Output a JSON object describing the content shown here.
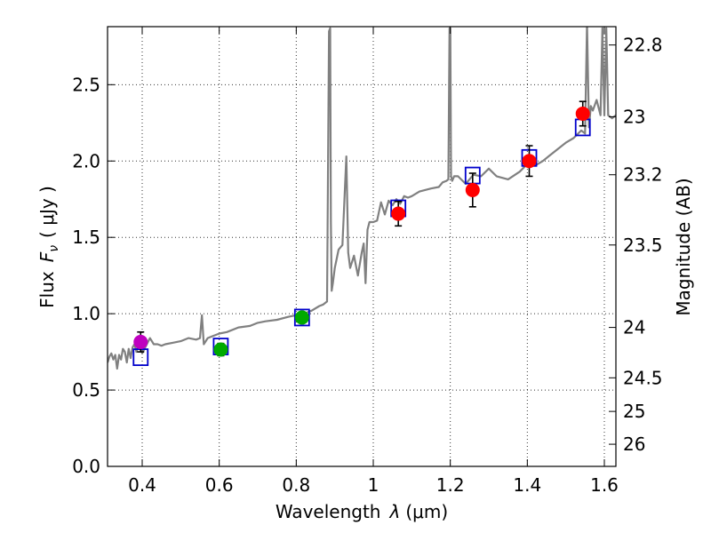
{
  "chart_data": {
    "type": "line",
    "title": "",
    "xlabel_prefix": "Wavelength",
    "xlabel_var": "λ",
    "xlabel_unit": "(μm)",
    "ylabel_prefix": "Flux",
    "ylabel_var": "F",
    "ylabel_sub": "ν",
    "ylabel_unit": "( μJy )",
    "y2label": "Magnitude (AB)",
    "xlim": [
      0.31,
      1.63
    ],
    "ylim": [
      0.0,
      2.88
    ],
    "grid": true,
    "x_ticks": [
      0.4,
      0.6,
      0.8,
      1.0,
      1.2,
      1.4,
      1.6
    ],
    "x_tick_labels": [
      "0.4",
      "0.6",
      "0.8",
      "1",
      "1.2",
      "1.4",
      "1.6"
    ],
    "y_ticks": [
      0.0,
      0.5,
      1.0,
      1.5,
      2.0,
      2.5
    ],
    "y_tick_labels": [
      "0.0",
      "0.5",
      "1.0",
      "1.5",
      "2.0",
      "2.5"
    ],
    "y2_ticks": [
      {
        "label": "22.8",
        "flux": 2.76
      },
      {
        "label": "23",
        "flux": 2.29
      },
      {
        "label": "23.2",
        "flux": 1.91
      },
      {
        "label": "23.5",
        "flux": 1.45
      },
      {
        "label": "24",
        "flux": 0.91
      },
      {
        "label": "24.5",
        "flux": 0.58
      },
      {
        "label": "25",
        "flux": 0.36
      },
      {
        "label": "26",
        "flux": 0.145
      }
    ],
    "series": [
      {
        "name": "model-spectrum",
        "color": "#808080",
        "x": [
          0.31,
          0.315,
          0.32,
          0.325,
          0.33,
          0.335,
          0.34,
          0.345,
          0.35,
          0.355,
          0.36,
          0.365,
          0.37,
          0.375,
          0.38,
          0.385,
          0.39,
          0.395,
          0.4,
          0.41,
          0.42,
          0.43,
          0.44,
          0.45,
          0.46,
          0.48,
          0.5,
          0.52,
          0.54,
          0.55,
          0.555,
          0.56,
          0.57,
          0.58,
          0.6,
          0.62,
          0.65,
          0.68,
          0.7,
          0.72,
          0.75,
          0.78,
          0.8,
          0.82,
          0.84,
          0.86,
          0.87,
          0.88,
          0.885,
          0.888,
          0.89,
          0.892,
          0.895,
          0.9,
          0.91,
          0.92,
          0.93,
          0.935,
          0.94,
          0.95,
          0.96,
          0.97,
          0.975,
          0.98,
          0.985,
          0.99,
          1.0,
          1.01,
          1.02,
          1.03,
          1.04,
          1.05,
          1.06,
          1.07,
          1.08,
          1.09,
          1.1,
          1.12,
          1.15,
          1.17,
          1.18,
          1.19,
          1.195,
          1.198,
          1.2,
          1.202,
          1.205,
          1.21,
          1.22,
          1.24,
          1.26,
          1.28,
          1.3,
          1.32,
          1.35,
          1.38,
          1.4,
          1.42,
          1.44,
          1.46,
          1.48,
          1.5,
          1.52,
          1.54,
          1.55,
          1.555,
          1.56,
          1.565,
          1.57,
          1.58,
          1.59,
          1.595,
          1.6,
          1.605,
          1.61,
          1.62,
          1.63
        ],
        "y": [
          0.68,
          0.72,
          0.74,
          0.7,
          0.73,
          0.64,
          0.73,
          0.7,
          0.77,
          0.75,
          0.68,
          0.77,
          0.71,
          0.78,
          0.8,
          0.75,
          0.79,
          0.78,
          0.74,
          0.79,
          0.84,
          0.8,
          0.8,
          0.79,
          0.8,
          0.81,
          0.82,
          0.84,
          0.83,
          0.84,
          0.99,
          0.8,
          0.84,
          0.85,
          0.87,
          0.88,
          0.91,
          0.92,
          0.94,
          0.95,
          0.96,
          0.98,
          0.99,
          1.0,
          1.02,
          1.05,
          1.06,
          1.08,
          2.85,
          2.87,
          1.6,
          1.15,
          1.2,
          1.3,
          1.42,
          1.45,
          2.03,
          1.4,
          1.3,
          1.38,
          1.25,
          1.4,
          1.46,
          1.2,
          1.55,
          1.6,
          1.6,
          1.61,
          1.73,
          1.65,
          1.74,
          1.71,
          1.75,
          1.72,
          1.77,
          1.76,
          1.77,
          1.8,
          1.82,
          1.83,
          1.86,
          1.87,
          1.88,
          2.87,
          2.87,
          1.9,
          1.87,
          1.9,
          1.9,
          1.85,
          1.91,
          1.9,
          1.95,
          1.9,
          1.88,
          1.93,
          1.98,
          1.97,
          2.0,
          2.04,
          2.08,
          2.12,
          2.15,
          2.2,
          2.18,
          2.9,
          2.22,
          2.36,
          2.33,
          2.4,
          2.3,
          2.87,
          2.3,
          2.87,
          2.3,
          2.28,
          2.3
        ]
      }
    ],
    "observed_points": [
      {
        "x": 0.396,
        "y": 0.815,
        "err": 0.065,
        "color": "#bf00bf"
      },
      {
        "x": 0.604,
        "y": 0.765,
        "err": 0.04,
        "color": "#00aa00"
      },
      {
        "x": 0.815,
        "y": 0.975,
        "err": 0.03,
        "color": "#00aa00"
      },
      {
        "x": 1.065,
        "y": 1.655,
        "err": 0.08,
        "color": "#ff0000"
      },
      {
        "x": 1.258,
        "y": 1.81,
        "err": 0.11,
        "color": "#ff0000"
      },
      {
        "x": 1.405,
        "y": 2.0,
        "err": 0.1,
        "color": "#ff0000"
      },
      {
        "x": 1.544,
        "y": 2.31,
        "err": 0.08,
        "color": "#ff0000"
      }
    ],
    "model_points": [
      {
        "x": 0.396,
        "y": 0.715
      },
      {
        "x": 0.604,
        "y": 0.785
      },
      {
        "x": 0.815,
        "y": 0.975
      },
      {
        "x": 1.065,
        "y": 1.69
      },
      {
        "x": 1.258,
        "y": 1.905
      },
      {
        "x": 1.405,
        "y": 2.02
      },
      {
        "x": 1.544,
        "y": 2.22
      }
    ],
    "model_point_color": "#0000cc"
  }
}
